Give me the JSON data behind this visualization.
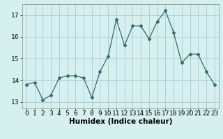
{
  "x": [
    0,
    1,
    2,
    3,
    4,
    5,
    6,
    7,
    8,
    9,
    10,
    11,
    12,
    13,
    14,
    15,
    16,
    17,
    18,
    19,
    20,
    21,
    22,
    23
  ],
  "y": [
    13.8,
    13.9,
    13.1,
    13.3,
    14.1,
    14.2,
    14.2,
    14.1,
    13.2,
    14.4,
    15.1,
    16.8,
    15.6,
    16.5,
    16.5,
    15.9,
    16.7,
    17.2,
    16.2,
    14.8,
    15.2,
    15.2,
    14.4,
    13.8
  ],
  "line_color": "#2d6b6b",
  "marker": "D",
  "marker_size": 2.5,
  "bg_color": "#d6f0f0",
  "grid_color": "#b0d0d0",
  "xlabel": "Humidex (Indice chaleur)",
  "xlim": [
    -0.5,
    23.5
  ],
  "ylim": [
    12.7,
    17.5
  ],
  "yticks": [
    13,
    14,
    15,
    16,
    17
  ],
  "xticks": [
    0,
    1,
    2,
    3,
    4,
    5,
    6,
    7,
    8,
    9,
    10,
    11,
    12,
    13,
    14,
    15,
    16,
    17,
    18,
    19,
    20,
    21,
    22,
    23
  ],
  "xlabel_fontsize": 7.5,
  "tick_fontsize": 6.5
}
